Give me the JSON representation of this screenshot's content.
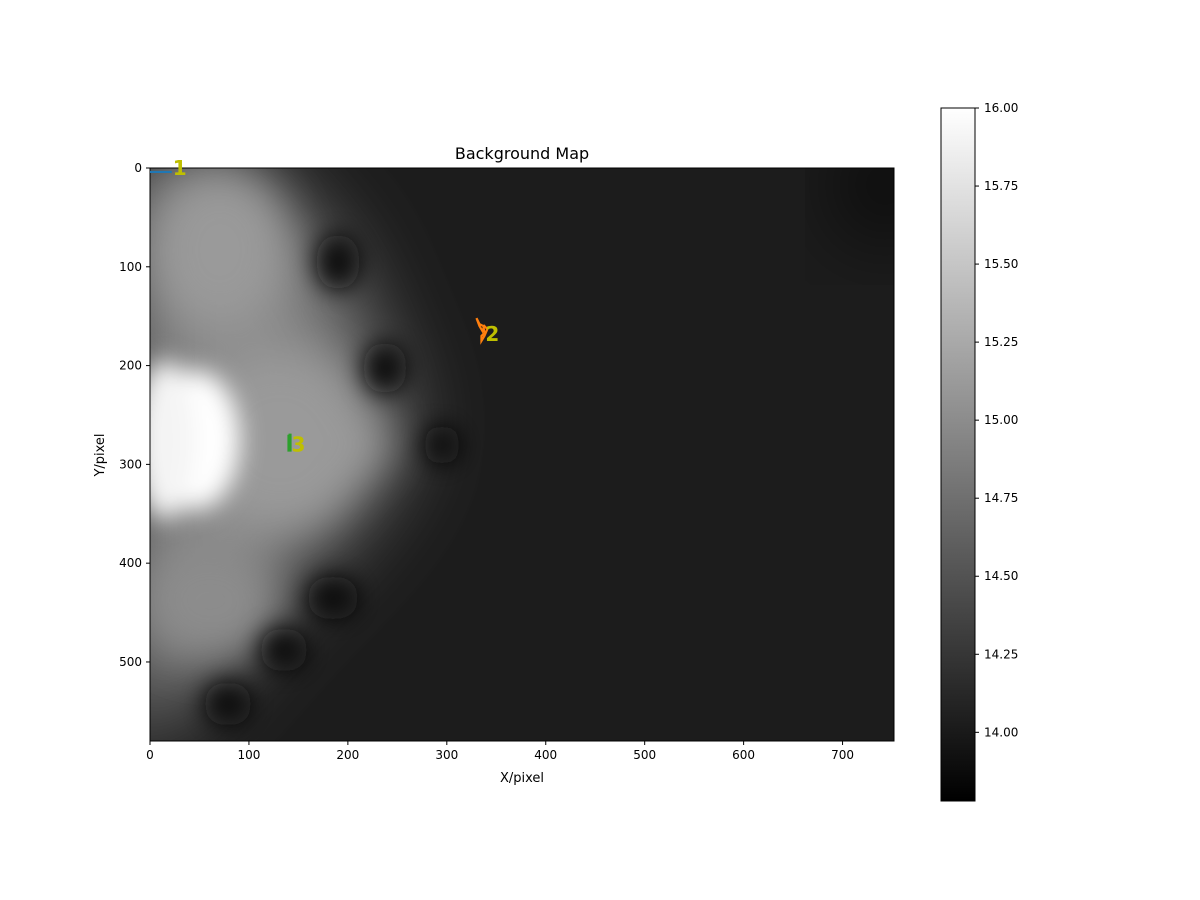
{
  "chart_data": {
    "type": "heatmap",
    "title": "Background Map",
    "xlabel": "X/pixel",
    "ylabel": "Y/pixel",
    "xlim": [
      0,
      752
    ],
    "ylim": [
      580,
      0
    ],
    "xticks": [
      0,
      100,
      200,
      300,
      400,
      500,
      600,
      700
    ],
    "yticks": [
      0,
      100,
      200,
      300,
      400,
      500
    ],
    "colormap": "gray",
    "colorbar": {
      "range": [
        13.78,
        16.0
      ],
      "ticks": [
        "14.00",
        "14.25",
        "14.50",
        "14.75",
        "15.00",
        "15.25",
        "15.50",
        "15.75",
        "16.00"
      ]
    },
    "regions": [
      {
        "label": "1",
        "color": "#1f77b4",
        "label_x": 30,
        "label_y": 0,
        "path_x": [
          0,
          22
        ],
        "path_y": [
          4,
          4
        ]
      },
      {
        "label": "2",
        "color": "#ff7f0e",
        "label_x": 346,
        "label_y": 168,
        "path_x": [
          333,
          330,
          333,
          336,
          338,
          341,
          338,
          335,
          335,
          338,
          337,
          333
        ],
        "path_y": [
          158,
          152,
          160,
          165,
          160,
          163,
          170,
          175,
          170,
          167,
          160,
          158
        ]
      },
      {
        "label": "3",
        "color": "#2ca02c",
        "label_x": 150,
        "label_y": 280,
        "path_x": [
          140,
          140,
          142,
          142,
          140
        ],
        "path_y": [
          270,
          286,
          286,
          270,
          270
        ]
      }
    ],
    "label_color": "#bfbf00",
    "colors": {
      "background_level": "#1c1c1c"
    }
  }
}
